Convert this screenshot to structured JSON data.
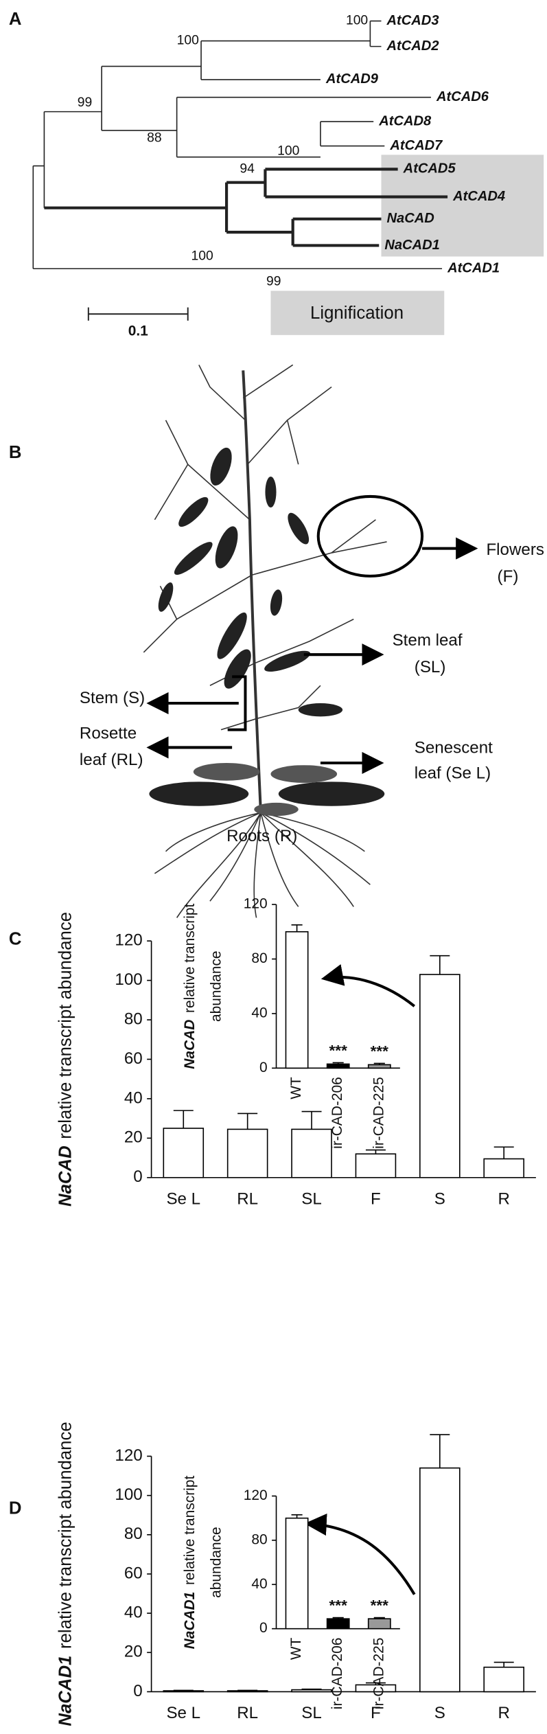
{
  "panels": [
    "A",
    "B",
    "C",
    "D"
  ],
  "tree": {
    "leaves": [
      "AtCAD3",
      "AtCAD2",
      "AtCAD9",
      "AtCAD6",
      "AtCAD8",
      "AtCAD7",
      "AtCAD5",
      "AtCAD4",
      "NaCAD",
      "NaCAD1",
      "AtCAD1"
    ],
    "support": [
      "100",
      "100",
      "99",
      "88",
      "100",
      "94",
      "100",
      "99"
    ],
    "scale": "0.1",
    "group": "Lignification"
  },
  "plant": {
    "labels": [
      "Flowers",
      "(F)",
      "Stem leaf",
      "(SL)",
      "Stem (S)",
      "Rosette",
      "leaf (RL)",
      "Senescent",
      "leaf (Se L)",
      "Roots (R)"
    ]
  },
  "chart_data": [
    {
      "type": "bar",
      "ylabel": [
        "NaCAD",
        "relative transcript abundance"
      ],
      "categories": [
        "Se L",
        "RL",
        "SL",
        "F",
        "S",
        "R"
      ],
      "values": [
        25,
        24.5,
        24.5,
        12,
        103,
        9.5
      ],
      "errors": [
        9,
        8,
        9,
        2,
        9.5,
        6
      ],
      "color": "#ffffff",
      "ylim": [
        0,
        120
      ],
      "yticks": [
        0,
        20,
        40,
        60,
        80,
        100,
        120
      ]
    },
    {
      "type": "bar",
      "ylabel": [
        "NaCAD",
        "relative transcript",
        "abundance"
      ],
      "categories": [
        "WT",
        "ir-CAD-206",
        "ir-CAD-225"
      ],
      "values": [
        100,
        3,
        2.5
      ],
      "errors": [
        5,
        1,
        1
      ],
      "colors": [
        "#ffffff",
        "#000000",
        "#999999"
      ],
      "annotations": [
        null,
        "***",
        "***"
      ],
      "ylim": [
        0,
        120
      ],
      "yticks": [
        0,
        40,
        80,
        120
      ]
    },
    {
      "type": "bar",
      "ylabel": [
        "NaCAD1",
        "relative transcript abundance"
      ],
      "categories": [
        "Se L",
        "RL",
        "SL",
        "F",
        "S",
        "R"
      ],
      "values": [
        0.5,
        0.5,
        1,
        3.5,
        114,
        12.5
      ],
      "errors": [
        0.2,
        0.2,
        0.3,
        1,
        17,
        2.5
      ],
      "color": "#ffffff",
      "ylim": [
        0,
        120
      ],
      "yticks": [
        0,
        20,
        40,
        60,
        80,
        100,
        120
      ]
    },
    {
      "type": "bar",
      "ylabel": [
        "NaCAD1",
        "relative transcript",
        "abundance"
      ],
      "categories": [
        "WT",
        "ir-CAD-206",
        "ir-CAD-225"
      ],
      "values": [
        100,
        9,
        9
      ],
      "errors": [
        3,
        1,
        1
      ],
      "colors": [
        "#ffffff",
        "#000000",
        "#999999"
      ],
      "annotations": [
        null,
        "***",
        "***"
      ],
      "ylim": [
        0,
        120
      ],
      "yticks": [
        0,
        40,
        80,
        120
      ]
    }
  ]
}
